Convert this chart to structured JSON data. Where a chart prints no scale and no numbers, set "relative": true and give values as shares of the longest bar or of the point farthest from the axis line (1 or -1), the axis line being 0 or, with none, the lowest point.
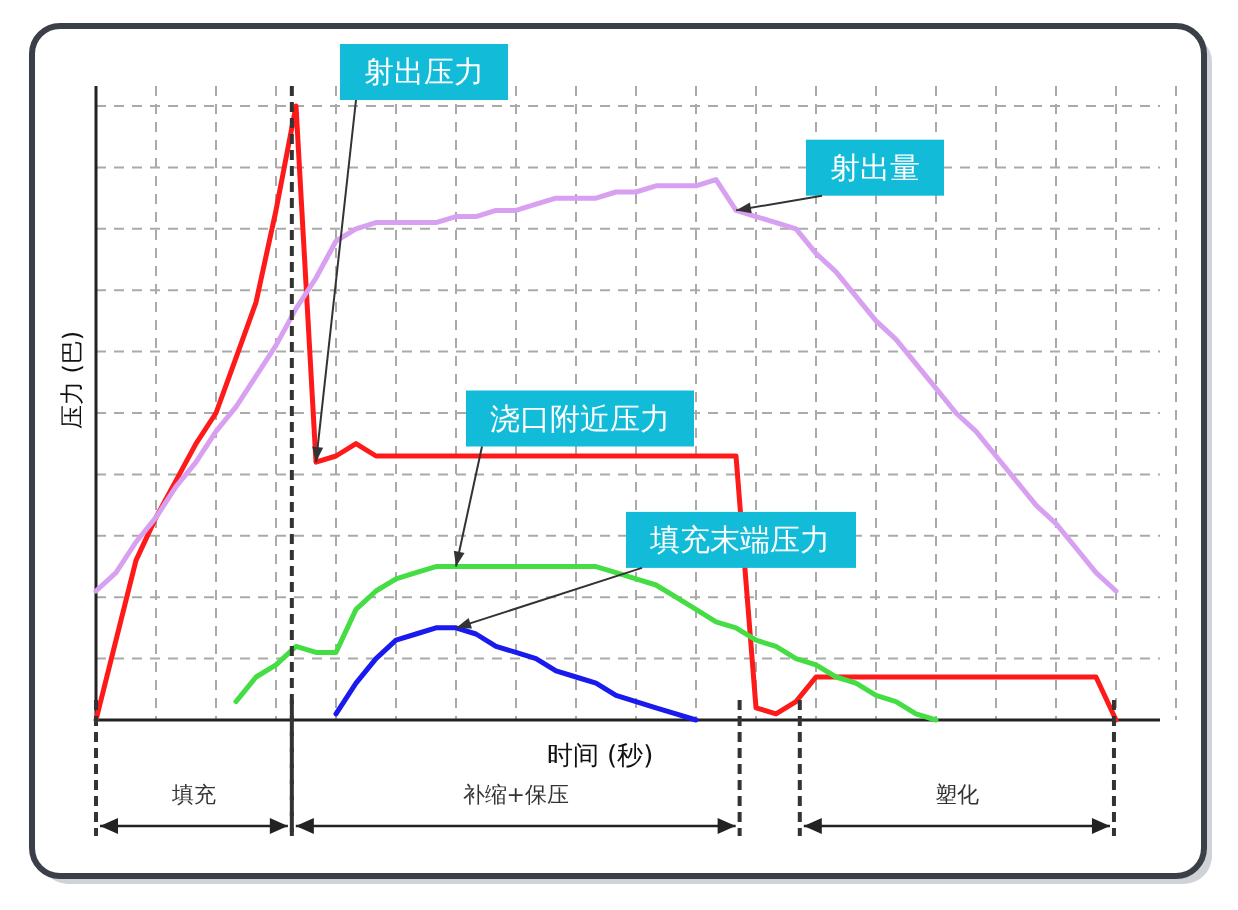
{
  "chart_data": {
    "type": "line",
    "relative": true,
    "xlabel": "时间 (秒)",
    "ylabel": "压力 (巴)",
    "grid": true,
    "legend": false,
    "marker": "none",
    "line_style": "solid",
    "categories": [
      null,
      null,
      null,
      null,
      null,
      null,
      null,
      null,
      null,
      null,
      null,
      null,
      null,
      null,
      null,
      null,
      null,
      null,
      null,
      null,
      null,
      null,
      null,
      null,
      null,
      null,
      null,
      null,
      null,
      null,
      null,
      null,
      null,
      null,
      null,
      null,
      null,
      null,
      null,
      null,
      null,
      null,
      null,
      null,
      null,
      null,
      null,
      null,
      null,
      null,
      null,
      null
    ],
    "series": [
      {
        "name": "射出压力",
        "color": "#ff1a1a",
        "values": [
          0.0,
          0.13,
          0.26,
          0.33,
          0.39,
          0.45,
          0.5,
          0.59,
          0.68,
          0.83,
          1.0,
          0.42,
          0.43,
          0.45,
          0.43,
          0.43,
          0.43,
          0.43,
          0.43,
          0.43,
          0.43,
          0.43,
          0.43,
          0.43,
          0.43,
          0.43,
          0.43,
          0.43,
          0.43,
          0.43,
          0.43,
          0.43,
          0.43,
          0.02,
          0.01,
          0.03,
          0.07,
          0.07,
          0.07,
          0.07,
          0.07,
          0.07,
          0.07,
          0.07,
          0.07,
          0.07,
          0.07,
          0.07,
          0.07,
          0.07,
          0.07,
          0.0
        ]
      },
      {
        "name": "射出量",
        "color": "#d8a0f0",
        "values": [
          0.21,
          0.24,
          0.29,
          0.33,
          0.38,
          0.42,
          0.47,
          0.51,
          0.56,
          0.61,
          0.67,
          0.72,
          0.78,
          0.8,
          0.81,
          0.81,
          0.81,
          0.81,
          0.82,
          0.82,
          0.83,
          0.83,
          0.84,
          0.85,
          0.85,
          0.85,
          0.86,
          0.86,
          0.87,
          0.87,
          0.87,
          0.88,
          0.83,
          0.82,
          0.81,
          0.8,
          0.76,
          0.73,
          0.69,
          0.65,
          0.62,
          0.58,
          0.54,
          0.5,
          0.47,
          0.43,
          0.39,
          0.35,
          0.32,
          0.28,
          0.24,
          0.21
        ]
      },
      {
        "name": "浇口附近压力",
        "color": "#44dd44",
        "values": [
          null,
          null,
          null,
          null,
          null,
          null,
          null,
          0.03,
          0.07,
          0.09,
          0.12,
          0.11,
          0.11,
          0.18,
          0.21,
          0.23,
          0.24,
          0.25,
          0.25,
          0.25,
          0.25,
          0.25,
          0.25,
          0.25,
          0.25,
          0.25,
          0.24,
          0.23,
          0.22,
          0.2,
          0.18,
          0.16,
          0.15,
          0.13,
          0.12,
          0.1,
          0.09,
          0.07,
          0.06,
          0.04,
          0.03,
          0.01,
          0.0,
          null,
          null,
          null,
          null,
          null,
          null,
          null,
          null,
          null
        ]
      },
      {
        "name": "填充末端压力",
        "color": "#1a1aee",
        "values": [
          null,
          null,
          null,
          null,
          null,
          null,
          null,
          null,
          null,
          null,
          null,
          null,
          0.01,
          0.06,
          0.1,
          0.13,
          0.14,
          0.15,
          0.15,
          0.14,
          0.12,
          0.11,
          0.1,
          0.08,
          0.07,
          0.06,
          0.04,
          0.03,
          0.02,
          0.01,
          0.0,
          null,
          null,
          null,
          null,
          null,
          null,
          null,
          null,
          null,
          null,
          null,
          null,
          null,
          null,
          null,
          null,
          null,
          null,
          null,
          null,
          null
        ]
      }
    ],
    "annotations": [
      "填充",
      "补缩+保压",
      "塑化"
    ]
  }
}
